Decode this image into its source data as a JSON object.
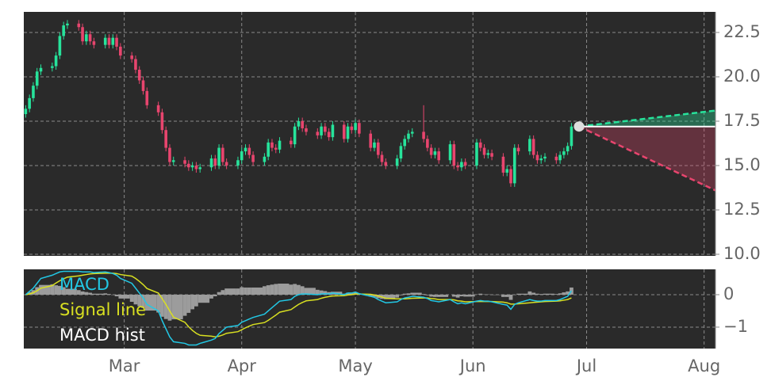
{
  "chart_data": [
    {
      "type": "candlestick",
      "x": [
        34,
        35,
        36,
        37,
        38,
        41,
        42,
        43,
        44,
        45,
        48,
        49,
        50,
        51,
        52,
        55,
        56,
        57,
        58,
        59,
        62,
        63,
        64,
        65,
        66,
        69,
        70,
        71,
        72,
        73,
        76,
        77,
        78,
        79,
        80,
        83,
        84,
        85,
        86,
        87,
        90,
        91,
        92,
        93,
        94,
        97,
        98,
        99,
        100,
        101,
        104,
        105,
        106,
        107,
        108,
        111,
        112,
        113,
        114,
        115,
        118,
        119,
        120,
        121,
        122,
        125,
        126,
        127,
        128,
        129,
        132,
        133,
        134,
        135,
        136,
        139,
        140,
        141,
        142,
        143,
        146,
        147,
        148,
        149,
        150,
        153,
        154,
        155,
        156,
        157,
        160,
        161,
        162,
        163,
        164,
        167,
        168,
        169,
        170,
        171,
        174,
        175,
        176,
        177,
        178
      ],
      "open": [
        17.9,
        18.2,
        18.8,
        19.5,
        20.3,
        20.5,
        20.6,
        21.2,
        22.3,
        22.9,
        23.0,
        22.8,
        22.0,
        22.4,
        22.0,
        21.8,
        22.2,
        21.8,
        22.2,
        21.7,
        21.2,
        21.0,
        20.4,
        19.8,
        19.2,
        18.4,
        18.0,
        17.0,
        16.0,
        15.2,
        15.3,
        15.1,
        14.9,
        15.0,
        14.8,
        14.9,
        15.4,
        15.0,
        16.0,
        15.2,
        15.0,
        15.3,
        15.8,
        16.0,
        15.6,
        15.2,
        15.5,
        16.3,
        16.0,
        15.9,
        16.4,
        16.2,
        17.2,
        17.5,
        17.1,
        16.9,
        16.7,
        17.2,
        16.9,
        16.6,
        17.3,
        16.5,
        17.2,
        17.0,
        17.4,
        16.8,
        16.0,
        16.3,
        15.6,
        15.2,
        15.0,
        15.4,
        16.1,
        16.5,
        16.8,
        16.9,
        16.5,
        16.0,
        15.6,
        15.8,
        15.3,
        16.2,
        15.0,
        14.9,
        15.2,
        15.0,
        16.3,
        16.0,
        15.6,
        15.7,
        15.5,
        14.6,
        14.8,
        14.0,
        16.0,
        15.8,
        16.5,
        15.6,
        15.3,
        15.4,
        15.5,
        15.3,
        15.6,
        15.8,
        16.1
      ],
      "high": [
        18.4,
        19.0,
        19.7,
        20.5,
        20.7,
        20.8,
        21.4,
        22.5,
        23.1,
        23.2,
        23.2,
        23.0,
        22.6,
        22.6,
        22.2,
        22.4,
        22.4,
        22.4,
        22.4,
        21.9,
        21.4,
        21.2,
        20.6,
        20.0,
        19.4,
        18.6,
        18.2,
        17.2,
        16.2,
        15.5,
        15.5,
        15.3,
        15.2,
        15.2,
        15.1,
        15.6,
        15.6,
        16.2,
        16.2,
        15.4,
        15.5,
        16.0,
        16.2,
        16.2,
        15.8,
        15.7,
        16.5,
        16.5,
        16.2,
        16.6,
        16.6,
        17.4,
        17.7,
        17.7,
        17.3,
        17.1,
        17.4,
        17.4,
        17.1,
        17.5,
        17.5,
        17.4,
        17.4,
        17.6,
        17.6,
        17.0,
        16.5,
        16.5,
        15.8,
        15.4,
        15.6,
        16.3,
        16.7,
        17.0,
        17.1,
        18.4,
        16.7,
        16.2,
        16.0,
        16.0,
        16.4,
        16.4,
        15.2,
        15.4,
        15.4,
        16.5,
        16.5,
        16.2,
        15.9,
        15.9,
        15.7,
        15.0,
        15.0,
        16.2,
        16.2,
        16.7,
        16.7,
        15.8,
        15.6,
        15.7,
        15.7,
        15.8,
        16.0,
        16.3,
        17.4
      ],
      "low": [
        17.7,
        18.0,
        18.6,
        19.3,
        20.1,
        20.3,
        20.4,
        21.0,
        22.1,
        22.7,
        22.6,
        21.8,
        21.8,
        21.8,
        21.6,
        21.6,
        21.6,
        21.6,
        21.5,
        21.0,
        20.8,
        20.2,
        19.6,
        19.0,
        18.2,
        17.8,
        16.8,
        15.8,
        15.0,
        15.0,
        14.9,
        14.7,
        14.7,
        14.6,
        14.6,
        14.7,
        14.8,
        14.8,
        15.0,
        14.8,
        14.8,
        15.1,
        15.6,
        15.4,
        15.0,
        15.0,
        15.3,
        15.8,
        15.7,
        15.7,
        16.0,
        16.0,
        17.0,
        16.9,
        16.7,
        16.5,
        16.5,
        16.7,
        16.4,
        16.4,
        16.3,
        16.3,
        16.8,
        16.8,
        16.6,
        15.8,
        15.8,
        15.4,
        15.0,
        14.8,
        14.8,
        15.2,
        15.9,
        16.3,
        16.6,
        16.3,
        15.8,
        15.4,
        15.4,
        15.1,
        15.1,
        14.8,
        14.7,
        14.7,
        14.8,
        14.8,
        15.8,
        15.4,
        15.4,
        15.3,
        14.4,
        14.4,
        13.8,
        13.8,
        15.6,
        15.6,
        15.4,
        15.1,
        15.1,
        15.2,
        15.1,
        15.1,
        15.4,
        15.6,
        15.9
      ],
      "close": [
        18.2,
        18.8,
        19.5,
        20.3,
        20.5,
        20.6,
        21.2,
        22.3,
        22.9,
        23.0,
        22.8,
        22.0,
        22.4,
        22.0,
        21.8,
        22.2,
        21.8,
        22.2,
        21.7,
        21.2,
        21.0,
        20.4,
        19.8,
        19.2,
        18.4,
        18.0,
        17.0,
        16.0,
        15.2,
        15.3,
        15.1,
        14.9,
        15.0,
        14.8,
        14.9,
        15.4,
        15.0,
        16.0,
        15.2,
        15.0,
        15.3,
        15.8,
        16.0,
        15.6,
        15.2,
        15.5,
        16.3,
        16.0,
        15.9,
        16.4,
        16.2,
        17.2,
        17.5,
        17.1,
        16.9,
        16.7,
        17.2,
        16.9,
        16.6,
        17.3,
        16.5,
        17.2,
        17.0,
        17.4,
        16.8,
        16.0,
        16.3,
        15.6,
        15.2,
        15.0,
        15.4,
        16.1,
        16.5,
        16.8,
        16.9,
        16.5,
        16.0,
        15.6,
        15.8,
        15.3,
        16.2,
        15.0,
        14.9,
        15.2,
        15.0,
        16.3,
        16.0,
        15.6,
        15.7,
        15.5,
        14.6,
        14.8,
        14.0,
        16.0,
        15.8,
        16.5,
        15.6,
        15.3,
        15.4,
        15.5,
        15.3,
        15.6,
        15.8,
        16.1,
        17.2
      ],
      "up_color": "#27e39b",
      "down_color": "#e8456e",
      "xlim": [
        33.5,
        216
      ],
      "ylim": [
        9.91,
        23.66
      ],
      "yticks": [
        {
          "value": 10,
          "label": "10.0"
        },
        12.5,
        {
          "value": 15,
          "label": "15.0"
        },
        17.5,
        {
          "value": 20,
          "label": "20.0"
        },
        22.5
      ],
      "grid": true,
      "forecast": {
        "x": [
          180,
          216
        ],
        "level": 17.2,
        "upper": [
          17.2,
          18.1
        ],
        "lower": [
          17.2,
          13.6
        ],
        "upper_color": "#27e39b",
        "lower_color": "#e8456e"
      }
    },
    {
      "type": "macd",
      "x": [
        34,
        35,
        36,
        37,
        38,
        41,
        42,
        43,
        44,
        45,
        48,
        49,
        50,
        51,
        52,
        55,
        56,
        57,
        58,
        59,
        62,
        63,
        64,
        65,
        66,
        69,
        70,
        71,
        72,
        73,
        76,
        77,
        78,
        79,
        80,
        83,
        84,
        85,
        86,
        87,
        90,
        91,
        92,
        93,
        94,
        97,
        98,
        99,
        100,
        101,
        104,
        105,
        106,
        107,
        108,
        111,
        112,
        113,
        114,
        115,
        118,
        119,
        120,
        121,
        122,
        125,
        126,
        127,
        128,
        129,
        132,
        133,
        134,
        135,
        136,
        139,
        140,
        141,
        142,
        143,
        146,
        147,
        148,
        149,
        150,
        153,
        154,
        155,
        156,
        157,
        160,
        161,
        162,
        163,
        164,
        167,
        168,
        169,
        170,
        171,
        174,
        175,
        176,
        177,
        178
      ],
      "series": [
        {
          "name": "MACD",
          "color": "#22c8e5",
          "values": [
            0.0,
            0.1,
            0.2,
            0.35,
            0.5,
            0.6,
            0.65,
            0.7,
            0.72,
            0.72,
            0.72,
            0.7,
            0.7,
            0.7,
            0.68,
            0.7,
            0.68,
            0.65,
            0.6,
            0.5,
            0.35,
            0.2,
            0.05,
            -0.1,
            -0.3,
            -0.5,
            -0.8,
            -1.05,
            -1.3,
            -1.45,
            -1.5,
            -1.55,
            -1.55,
            -1.55,
            -1.5,
            -1.4,
            -1.35,
            -1.2,
            -1.1,
            -1.0,
            -0.95,
            -0.85,
            -0.8,
            -0.75,
            -0.7,
            -0.6,
            -0.5,
            -0.4,
            -0.3,
            -0.2,
            -0.15,
            -0.05,
            0.0,
            0.02,
            0.02,
            0.0,
            0.02,
            0.03,
            0.02,
            0.05,
            0.0,
            0.05,
            0.05,
            0.08,
            0.03,
            -0.05,
            -0.08,
            -0.15,
            -0.2,
            -0.25,
            -0.22,
            -0.15,
            -0.1,
            -0.08,
            -0.05,
            -0.08,
            -0.12,
            -0.18,
            -0.2,
            -0.22,
            -0.15,
            -0.22,
            -0.28,
            -0.25,
            -0.28,
            -0.2,
            -0.18,
            -0.2,
            -0.2,
            -0.22,
            -0.3,
            -0.32,
            -0.45,
            -0.3,
            -0.25,
            -0.15,
            -0.18,
            -0.2,
            -0.2,
            -0.18,
            -0.18,
            -0.15,
            -0.1,
            -0.05,
            0.12
          ]
        },
        {
          "name": "Signal line",
          "color": "#d9e021",
          "values": [
            0.0,
            0.02,
            0.06,
            0.12,
            0.2,
            0.28,
            0.36,
            0.43,
            0.49,
            0.54,
            0.58,
            0.6,
            0.62,
            0.64,
            0.65,
            0.66,
            0.66,
            0.66,
            0.65,
            0.62,
            0.57,
            0.5,
            0.41,
            0.31,
            0.19,
            0.05,
            -0.12,
            -0.3,
            -0.5,
            -0.69,
            -0.85,
            -0.99,
            -1.1,
            -1.19,
            -1.25,
            -1.28,
            -1.3,
            -1.28,
            -1.24,
            -1.19,
            -1.14,
            -1.08,
            -1.02,
            -0.97,
            -0.92,
            -0.86,
            -0.79,
            -0.71,
            -0.63,
            -0.54,
            -0.46,
            -0.38,
            -0.3,
            -0.24,
            -0.19,
            -0.15,
            -0.11,
            -0.08,
            -0.06,
            -0.04,
            -0.03,
            -0.01,
            0.0,
            0.02,
            0.02,
            0.01,
            -0.01,
            -0.04,
            -0.07,
            -0.11,
            -0.13,
            -0.13,
            -0.13,
            -0.12,
            -0.11,
            -0.1,
            -0.1,
            -0.12,
            -0.13,
            -0.15,
            -0.15,
            -0.16,
            -0.19,
            -0.2,
            -0.22,
            -0.21,
            -0.21,
            -0.21,
            -0.21,
            -0.21,
            -0.23,
            -0.25,
            -0.29,
            -0.29,
            -0.28,
            -0.25,
            -0.24,
            -0.23,
            -0.22,
            -0.21,
            -0.2,
            -0.19,
            -0.17,
            -0.15,
            -0.1
          ]
        },
        {
          "name": "MACD hist",
          "color": "#9c9c9c",
          "values": [
            0.0,
            0.08,
            0.14,
            0.23,
            0.3,
            0.32,
            0.29,
            0.27,
            0.23,
            0.18,
            0.14,
            0.1,
            0.08,
            0.06,
            0.03,
            0.04,
            0.02,
            -0.01,
            -0.05,
            -0.12,
            -0.22,
            -0.3,
            -0.36,
            -0.41,
            -0.49,
            -0.55,
            -0.68,
            -0.75,
            -0.8,
            -0.76,
            -0.65,
            -0.56,
            -0.45,
            -0.36,
            -0.25,
            -0.12,
            -0.05,
            0.08,
            0.14,
            0.19,
            0.19,
            0.23,
            0.22,
            0.22,
            0.22,
            0.26,
            0.29,
            0.31,
            0.33,
            0.34,
            0.31,
            0.33,
            0.3,
            0.26,
            0.21,
            0.15,
            0.13,
            0.11,
            0.08,
            0.09,
            0.03,
            0.06,
            0.05,
            0.06,
            0.01,
            -0.06,
            -0.07,
            -0.11,
            -0.13,
            -0.14,
            -0.09,
            -0.02,
            0.03,
            0.04,
            0.06,
            0.02,
            -0.02,
            -0.06,
            -0.07,
            -0.07,
            0.0,
            -0.06,
            -0.09,
            -0.05,
            -0.06,
            0.01,
            0.03,
            0.01,
            0.01,
            -0.01,
            -0.07,
            -0.07,
            -0.16,
            -0.01,
            0.03,
            0.1,
            0.06,
            0.03,
            0.02,
            0.03,
            0.02,
            0.04,
            0.07,
            0.1,
            0.22
          ]
        }
      ],
      "xlim": [
        33.5,
        216
      ],
      "ylim": [
        -1.66,
        0.78
      ],
      "yticks": [
        {
          "value": -1,
          "label": "−1"
        },
        0
      ],
      "xticks": [
        {
          "value": 60,
          "label": "Mar"
        },
        {
          "value": 91,
          "label": "Apr"
        },
        {
          "value": 121,
          "label": "May"
        },
        {
          "value": 152,
          "label": "Jun"
        },
        {
          "value": 182,
          "label": "Jul"
        },
        {
          "value": 213,
          "label": "Aug"
        }
      ],
      "grid": true
    }
  ]
}
